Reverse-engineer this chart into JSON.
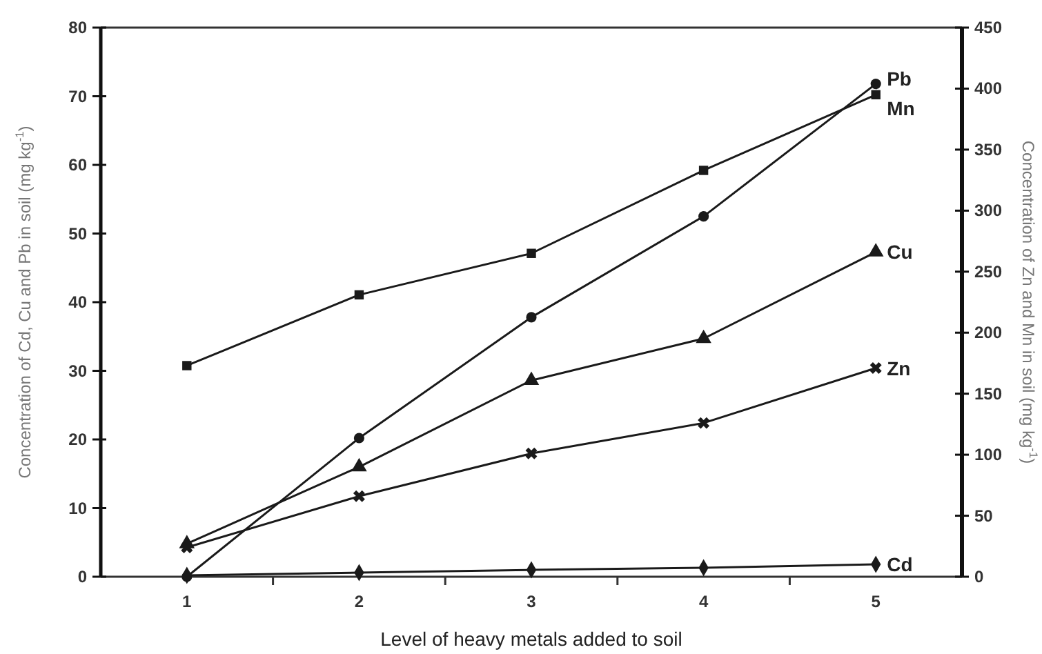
{
  "chart_data": {
    "type": "line",
    "xlabel": "Level of heavy metals added to soil",
    "ylabel": "Concentration of Cd, Cu and Pb in soil (mg kg$^{-1}$)",
    "y2label": "Concentration of Zn and Mn in soil (mg kg$^{-1}$)",
    "categories": [
      "1",
      "2",
      "3",
      "4",
      "5"
    ],
    "ylim": [
      0,
      80
    ],
    "yticks": [
      0,
      10,
      20,
      30,
      40,
      50,
      60,
      70,
      80
    ],
    "y2lim": [
      0,
      450
    ],
    "y2ticks": [
      0,
      50,
      100,
      150,
      200,
      250,
      300,
      350,
      400,
      450
    ],
    "grid": false,
    "line_style": "solid",
    "series": [
      {
        "name": "Pb",
        "color": "#1a1a1a",
        "marker": "circle",
        "values": [
          0,
          20.2,
          37.8,
          52.5,
          71.8
        ]
      },
      {
        "name": "Mn",
        "color": "#1a1a1a",
        "marker": "square",
        "axis": "y2",
        "values": [
          173,
          231,
          265,
          333,
          395
        ]
      },
      {
        "name": "Cu",
        "color": "#1a1a1a",
        "marker": "triangle",
        "values": [
          4.8,
          16,
          28.6,
          34.7,
          47.3
        ]
      },
      {
        "name": "Zn",
        "color": "#1a1a1a",
        "marker": "cross",
        "axis": "y2",
        "values": [
          24,
          66,
          101,
          126,
          171
        ]
      },
      {
        "name": "Cd",
        "color": "#1a1a1a",
        "marker": "diamond",
        "values": [
          0.2,
          0.6,
          1.0,
          1.3,
          1.8
        ]
      }
    ]
  }
}
